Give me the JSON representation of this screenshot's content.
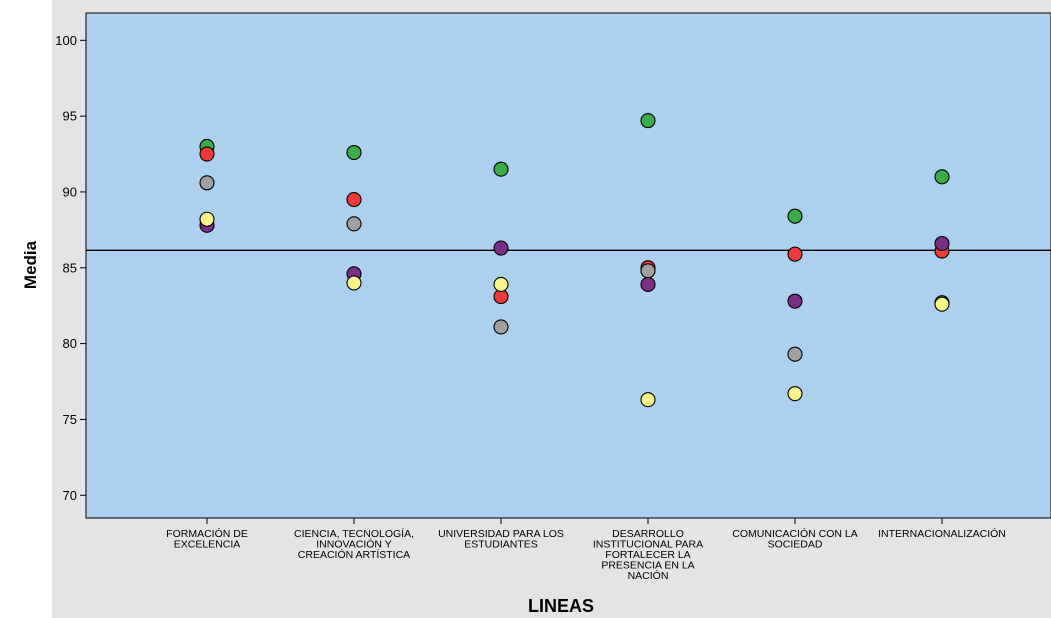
{
  "chart_data": {
    "type": "scatter",
    "xlabel": "LINEAS",
    "ylabel": "Media",
    "ylim": [
      68.5,
      101.8
    ],
    "yticks": [
      70,
      75,
      80,
      85,
      90,
      95,
      100
    ],
    "reference_line": 86.15,
    "grid": false,
    "categories": [
      [
        "FORMACIÓN DE",
        "EXCELENCIA"
      ],
      [
        "CIENCIA, TECNOLOGÍA,",
        "INNOVACIÓN Y",
        "CREACIÓN ARTÍSTICA"
      ],
      [
        "UNIVERSIDAD PARA LOS",
        "ESTUDIANTES"
      ],
      [
        "DESARROLLO",
        "INSTITUCIONAL PARA",
        "FORTALECER LA",
        "PRESENCIA EN LA",
        "NACIÓN"
      ],
      [
        "COMUNICACIÓN CON LA",
        "SOCIEDAD"
      ],
      [
        "INTERNACIONALIZACIÓN"
      ]
    ],
    "series": [
      {
        "color": "#3aac48",
        "values": [
          93.0,
          92.6,
          91.5,
          94.7,
          88.4,
          91.0
        ]
      },
      {
        "color": "#ee3a3a",
        "values": [
          92.5,
          89.5,
          83.1,
          85.0,
          85.9,
          86.1
        ]
      },
      {
        "color": "#a0a0a0",
        "values": [
          90.6,
          87.9,
          81.1,
          84.8,
          79.3,
          82.7
        ]
      },
      {
        "color": "#7a2e84",
        "values": [
          87.8,
          84.6,
          86.3,
          83.9,
          82.8,
          86.6
        ]
      },
      {
        "color": "#f8f48c",
        "values": [
          88.2,
          84.0,
          83.9,
          76.3,
          76.7,
          82.6
        ]
      }
    ],
    "colors": {
      "plot_background": "#acd0ee",
      "outer_background": "#e4e4e4"
    }
  }
}
